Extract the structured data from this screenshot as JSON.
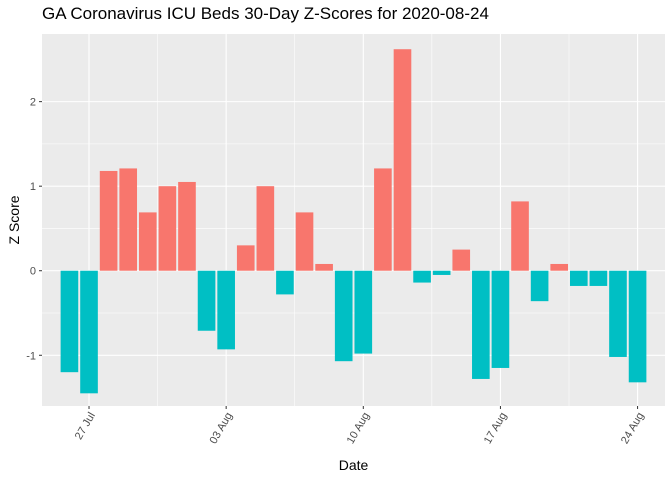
{
  "chart_data": {
    "type": "bar",
    "title": "GA Coronavirus ICU Beds 30-Day Z-Scores for 2020-08-24",
    "xlabel": "Date",
    "ylabel": "Z Score",
    "ylim": [
      -1.6,
      2.8
    ],
    "y_ticks": [
      -1,
      0,
      1,
      2
    ],
    "x_ticks": [
      {
        "date": "2020-07-27",
        "label": "27 Jul"
      },
      {
        "date": "2020-08-03",
        "label": "03 Aug"
      },
      {
        "date": "2020-08-10",
        "label": "10 Aug"
      },
      {
        "date": "2020-08-17",
        "label": "17 Aug"
      },
      {
        "date": "2020-08-24",
        "label": "24 Aug"
      }
    ],
    "grid": true,
    "legend": "none",
    "colors": {
      "positive": "#F8766D",
      "negative": "#00BFC4",
      "panel": "#EBEBEB",
      "grid": "#FFFFFF"
    },
    "x": [
      "2020-07-26",
      "2020-07-27",
      "2020-07-28",
      "2020-07-29",
      "2020-07-30",
      "2020-07-31",
      "2020-08-01",
      "2020-08-02",
      "2020-08-03",
      "2020-08-04",
      "2020-08-05",
      "2020-08-06",
      "2020-08-07",
      "2020-08-08",
      "2020-08-09",
      "2020-08-10",
      "2020-08-11",
      "2020-08-12",
      "2020-08-13",
      "2020-08-14",
      "2020-08-15",
      "2020-08-16",
      "2020-08-17",
      "2020-08-18",
      "2020-08-19",
      "2020-08-20",
      "2020-08-21",
      "2020-08-22",
      "2020-08-23",
      "2020-08-24"
    ],
    "values": [
      -1.2,
      -1.45,
      1.18,
      1.21,
      0.69,
      1.0,
      1.05,
      -0.71,
      -0.93,
      0.3,
      1.0,
      -0.28,
      0.69,
      0.08,
      -1.07,
      -0.98,
      1.21,
      2.62,
      -0.14,
      -0.05,
      0.25,
      -1.28,
      -1.15,
      0.82,
      -0.36,
      0.08,
      -0.18,
      -0.18,
      -1.02,
      -1.32
    ]
  }
}
